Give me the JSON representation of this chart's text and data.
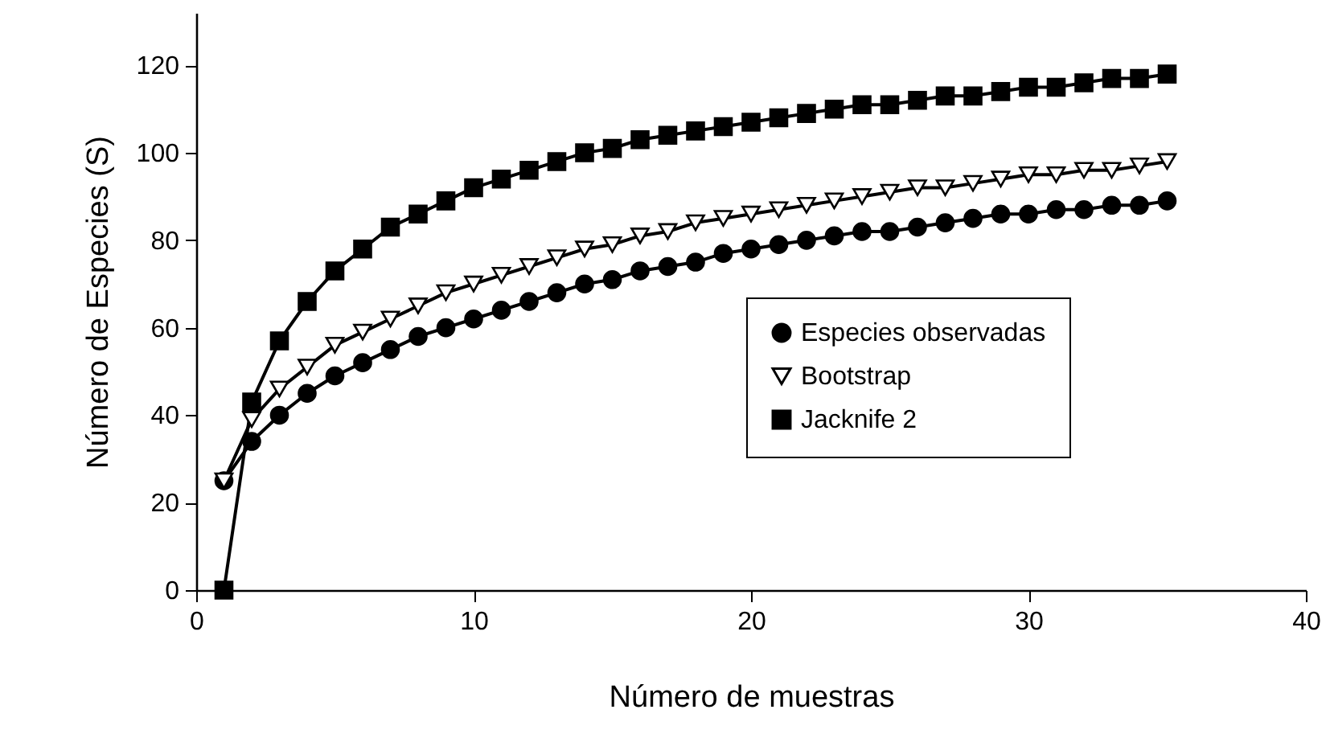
{
  "chart_data": {
    "type": "line",
    "xlabel": "Número de muestras",
    "ylabel": "Número de Especies (S)",
    "x": [
      1,
      2,
      3,
      4,
      5,
      6,
      7,
      8,
      9,
      10,
      11,
      12,
      13,
      14,
      15,
      16,
      17,
      18,
      19,
      20,
      21,
      22,
      23,
      24,
      25,
      26,
      27,
      28,
      29,
      30,
      31,
      32,
      33,
      34,
      35
    ],
    "xlim": [
      0,
      40
    ],
    "xticks": [
      0,
      10,
      20,
      30,
      40
    ],
    "ylim": [
      0,
      132
    ],
    "yticks": [
      0,
      20,
      40,
      60,
      80,
      100,
      120
    ],
    "grid": false,
    "legend": "right",
    "line_style": "solid",
    "series": [
      {
        "name": "Especies observadas",
        "color": "#000000",
        "marker": "circle",
        "values": [
          25,
          34,
          40,
          45,
          49,
          52,
          55,
          58,
          60,
          62,
          64,
          66,
          68,
          70,
          71,
          73,
          74,
          75,
          77,
          78,
          79,
          80,
          81,
          82,
          82,
          83,
          84,
          85,
          86,
          86,
          87,
          87,
          88,
          88,
          89
        ]
      },
      {
        "name": "Bootstrap",
        "color": "#000000",
        "marker": "triangle",
        "values": [
          25,
          39,
          46,
          51,
          56,
          59,
          62,
          65,
          68,
          70,
          72,
          74,
          76,
          78,
          79,
          81,
          82,
          84,
          85,
          86,
          87,
          88,
          89,
          90,
          91,
          92,
          92,
          93,
          94,
          95,
          95,
          96,
          96,
          97,
          98
        ]
      },
      {
        "name": "Jacknife 2",
        "color": "#000000",
        "marker": "square",
        "values": [
          0,
          43,
          57,
          66,
          73,
          78,
          83,
          86,
          89,
          92,
          94,
          96,
          98,
          100,
          101,
          103,
          104,
          105,
          106,
          107,
          108,
          109,
          110,
          111,
          111,
          112,
          113,
          113,
          114,
          115,
          115,
          116,
          117,
          117,
          118
        ]
      }
    ]
  }
}
